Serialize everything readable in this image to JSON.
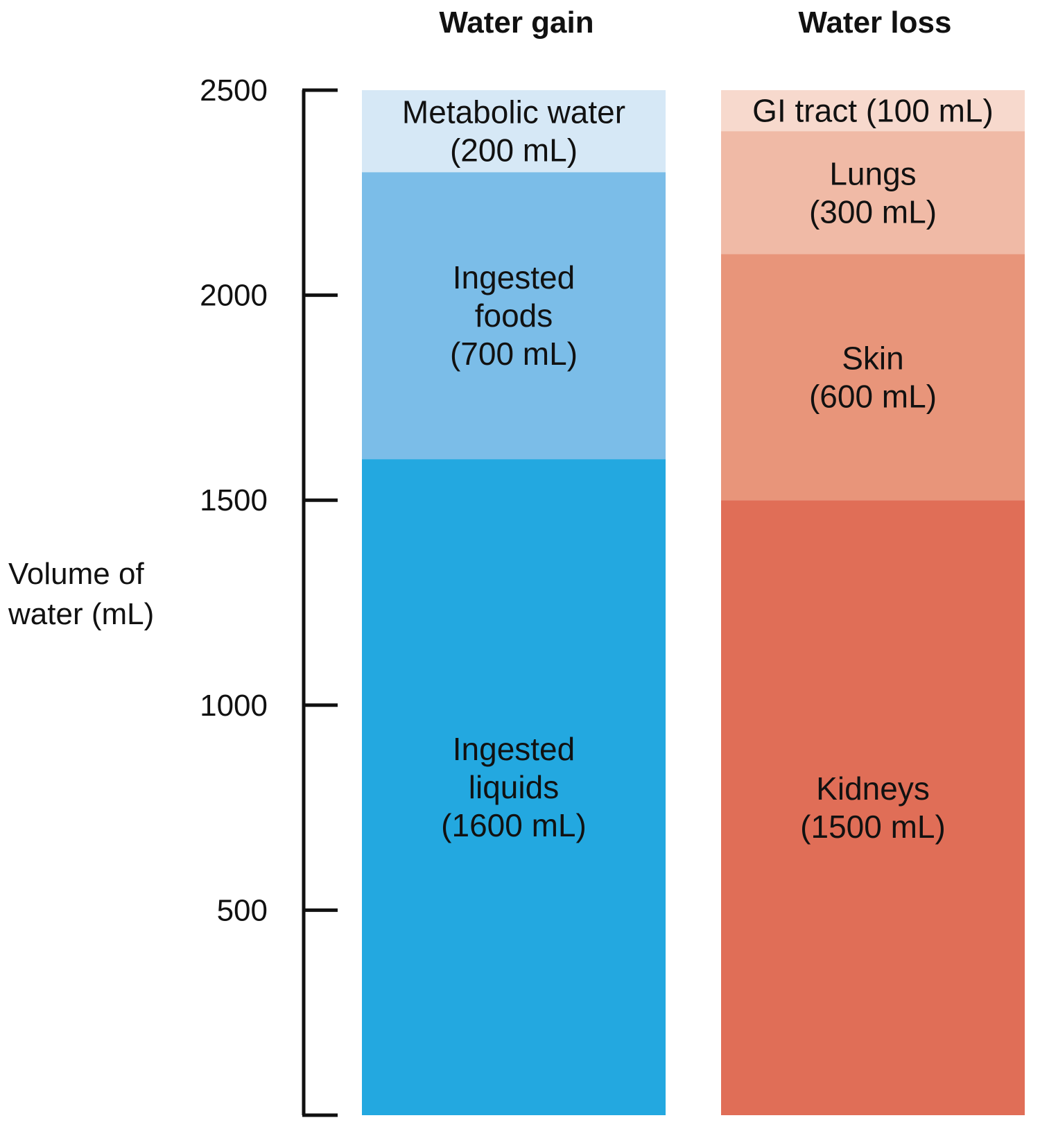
{
  "chart_data": {
    "type": "bar",
    "stacked": true,
    "title": "",
    "ylabel": "Volume of water (mL)",
    "ylabel_lines": [
      "Volume of",
      "water (mL)"
    ],
    "ylim": [
      0,
      2500
    ],
    "yticks": [
      500,
      1000,
      1500,
      2000,
      2500
    ],
    "grid": false,
    "categories": [
      "Water gain",
      "Water loss"
    ],
    "stacks": [
      {
        "category": "Water gain",
        "segments": [
          {
            "label_lines": [
              "Ingested",
              "liquids",
              "(1600 mL)"
            ],
            "value": 1600,
            "color": "#23a8e0"
          },
          {
            "label_lines": [
              "Ingested",
              "foods",
              "(700 mL)"
            ],
            "value": 700,
            "color": "#7bbde8"
          },
          {
            "label_lines": [
              "Metabolic water",
              "(200 mL)"
            ],
            "value": 200,
            "color": "#d6e8f6"
          }
        ]
      },
      {
        "category": "Water loss",
        "segments": [
          {
            "label_lines": [
              "Kidneys",
              "(1500 mL)"
            ],
            "value": 1500,
            "color": "#e06e57"
          },
          {
            "label_lines": [
              "Skin",
              "(600 mL)"
            ],
            "value": 600,
            "color": "#e8957a"
          },
          {
            "label_lines": [
              "Lungs",
              "(300 mL)"
            ],
            "value": 300,
            "color": "#f0baa6"
          },
          {
            "label_lines": [
              "GI tract (100 mL)"
            ],
            "value": 100,
            "color": "#f7d9cd"
          }
        ]
      }
    ]
  }
}
